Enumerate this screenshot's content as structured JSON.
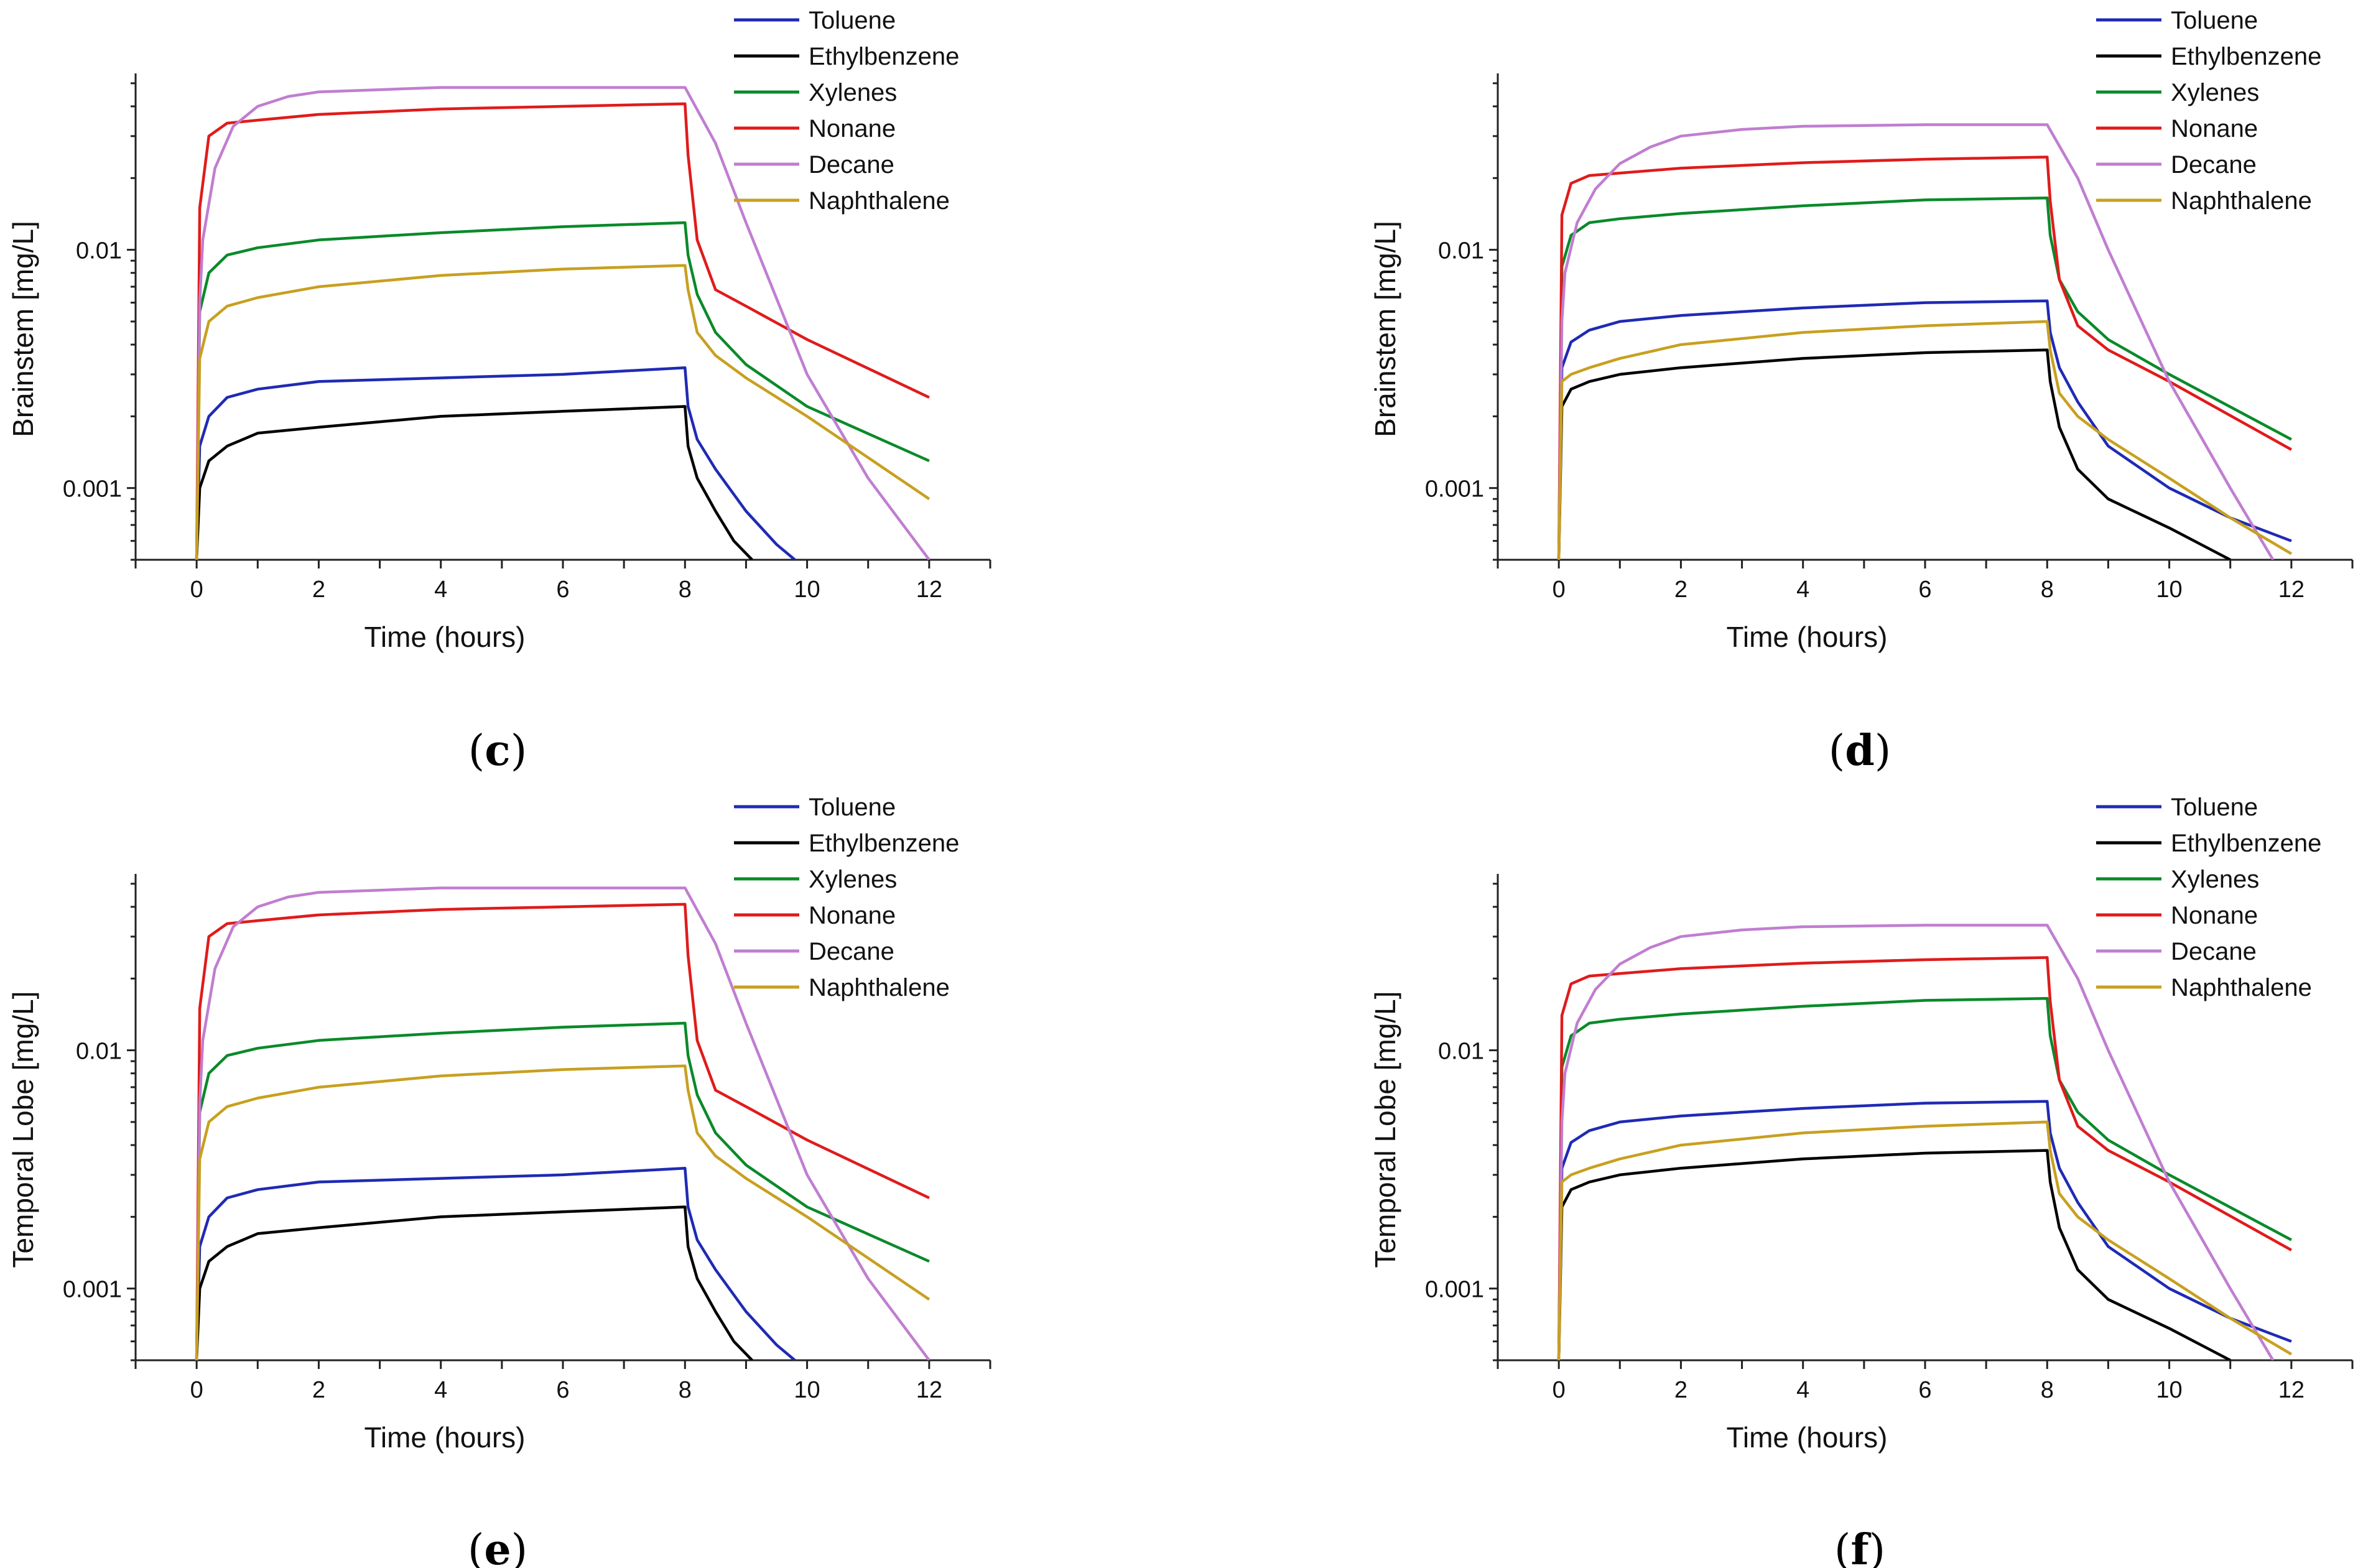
{
  "chart_data": [
    {
      "type": "line",
      "panel": "c",
      "panel_label": "(c)",
      "xlabel": "Time (hours)",
      "ylabel": "Brainstem [mg/L]",
      "xlim": [
        -1,
        13
      ],
      "ylim": [
        0.0005,
        0.055
      ],
      "yscale": "log",
      "x_ticks": [
        0,
        2,
        4,
        6,
        8,
        10,
        12
      ],
      "y_ticks": [
        {
          "value": 0.001,
          "label": "0.001"
        },
        {
          "value": 0.01,
          "label": "0.01"
        }
      ],
      "legend_position": "top-right",
      "series": [
        {
          "name": "Toluene",
          "color": "#1f2ab4",
          "x": [
            0,
            0.05,
            0.2,
            0.5,
            1,
            2,
            4,
            6,
            8,
            8.05,
            8.2,
            8.5,
            9,
            9.5,
            9.8
          ],
          "y": [
            0.0005,
            0.0015,
            0.002,
            0.0024,
            0.0026,
            0.0028,
            0.0029,
            0.003,
            0.0032,
            0.0022,
            0.0016,
            0.0012,
            0.0008,
            0.00058,
            0.0005
          ]
        },
        {
          "name": "Ethylbenzene",
          "color": "#000000",
          "x": [
            0,
            0.05,
            0.2,
            0.5,
            1,
            2,
            4,
            6,
            8,
            8.05,
            8.2,
            8.5,
            8.8,
            9.1
          ],
          "y": [
            0.0005,
            0.001,
            0.0013,
            0.0015,
            0.0017,
            0.0018,
            0.002,
            0.0021,
            0.0022,
            0.0015,
            0.0011,
            0.0008,
            0.0006,
            0.0005
          ]
        },
        {
          "name": "Xylenes",
          "color": "#0a8a2a",
          "x": [
            0,
            0.05,
            0.2,
            0.5,
            1,
            2,
            4,
            6,
            8,
            8.05,
            8.2,
            8.5,
            9,
            10,
            12
          ],
          "y": [
            0.0005,
            0.0055,
            0.008,
            0.0095,
            0.0102,
            0.011,
            0.0118,
            0.0125,
            0.013,
            0.0095,
            0.0065,
            0.0045,
            0.0033,
            0.0022,
            0.0013
          ]
        },
        {
          "name": "Nonane",
          "color": "#e01b1b",
          "x": [
            0,
            0.05,
            0.2,
            0.5,
            1,
            2,
            4,
            6,
            8,
            8.05,
            8.2,
            8.5,
            9,
            10,
            12
          ],
          "y": [
            0.0005,
            0.015,
            0.03,
            0.034,
            0.035,
            0.037,
            0.039,
            0.04,
            0.041,
            0.025,
            0.011,
            0.0068,
            0.0058,
            0.0042,
            0.0024
          ]
        },
        {
          "name": "Decane",
          "color": "#c07ed0",
          "x": [
            0,
            0.05,
            0.1,
            0.3,
            0.6,
            1,
            1.5,
            2,
            3,
            4,
            6,
            8,
            8.5,
            9,
            10,
            11,
            12
          ],
          "y": [
            0.0005,
            0.006,
            0.011,
            0.022,
            0.033,
            0.04,
            0.044,
            0.046,
            0.047,
            0.048,
            0.048,
            0.048,
            0.028,
            0.013,
            0.003,
            0.0011,
            0.0005
          ]
        },
        {
          "name": "Naphthalene",
          "color": "#c8a020",
          "x": [
            0,
            0.05,
            0.2,
            0.5,
            1,
            2,
            4,
            6,
            8,
            8.05,
            8.2,
            8.5,
            9,
            10,
            12
          ],
          "y": [
            0.0005,
            0.0035,
            0.005,
            0.0058,
            0.0063,
            0.007,
            0.0078,
            0.0083,
            0.0086,
            0.0068,
            0.0045,
            0.0036,
            0.0029,
            0.002,
            0.0009
          ]
        }
      ]
    },
    {
      "type": "line",
      "panel": "d",
      "panel_label": "(d)",
      "xlabel": "Time (hours)",
      "ylabel": "Brainstem [mg/L]",
      "xlim": [
        -1,
        13
      ],
      "ylim": [
        0.0005,
        0.055
      ],
      "yscale": "log",
      "x_ticks": [
        0,
        2,
        4,
        6,
        8,
        10,
        12
      ],
      "y_ticks": [
        {
          "value": 0.001,
          "label": "0.001"
        },
        {
          "value": 0.01,
          "label": "0.01"
        }
      ],
      "legend_position": "top-right",
      "series": [
        {
          "name": "Toluene",
          "color": "#1f2ab4",
          "x": [
            0,
            0.05,
            0.2,
            0.5,
            1,
            2,
            4,
            6,
            8,
            8.05,
            8.2,
            8.5,
            9,
            10,
            11,
            12
          ],
          "y": [
            0.0005,
            0.0032,
            0.0041,
            0.0046,
            0.005,
            0.0053,
            0.0057,
            0.006,
            0.0061,
            0.0045,
            0.0032,
            0.0023,
            0.0015,
            0.001,
            0.00075,
            0.0006
          ]
        },
        {
          "name": "Ethylbenzene",
          "color": "#000000",
          "x": [
            0,
            0.05,
            0.2,
            0.5,
            1,
            2,
            4,
            6,
            8,
            8.05,
            8.2,
            8.5,
            9,
            10,
            11
          ],
          "y": [
            0.0005,
            0.0022,
            0.0026,
            0.0028,
            0.003,
            0.0032,
            0.0035,
            0.0037,
            0.0038,
            0.0028,
            0.0018,
            0.0012,
            0.0009,
            0.00068,
            0.0005
          ]
        },
        {
          "name": "Xylenes",
          "color": "#0a8a2a",
          "x": [
            0,
            0.05,
            0.2,
            0.5,
            1,
            2,
            4,
            6,
            8,
            8.05,
            8.2,
            8.5,
            9,
            10,
            12
          ],
          "y": [
            0.0005,
            0.0085,
            0.0115,
            0.013,
            0.0135,
            0.0142,
            0.0153,
            0.0162,
            0.0165,
            0.0115,
            0.0075,
            0.0055,
            0.0042,
            0.003,
            0.0016
          ]
        },
        {
          "name": "Nonane",
          "color": "#e01b1b",
          "x": [
            0,
            0.05,
            0.2,
            0.5,
            1,
            2,
            4,
            6,
            8,
            8.05,
            8.2,
            8.5,
            9,
            10,
            12
          ],
          "y": [
            0.0005,
            0.014,
            0.019,
            0.0205,
            0.021,
            0.022,
            0.0232,
            0.024,
            0.0245,
            0.016,
            0.0075,
            0.0048,
            0.0038,
            0.0028,
            0.00145
          ]
        },
        {
          "name": "Decane",
          "color": "#c07ed0",
          "x": [
            0,
            0.05,
            0.1,
            0.3,
            0.6,
            1,
            1.5,
            2,
            3,
            4,
            6,
            8,
            8.5,
            9,
            10,
            11,
            11.7
          ],
          "y": [
            0.0005,
            0.005,
            0.008,
            0.013,
            0.018,
            0.023,
            0.027,
            0.03,
            0.032,
            0.033,
            0.0335,
            0.0335,
            0.02,
            0.01,
            0.0028,
            0.001,
            0.0005
          ]
        },
        {
          "name": "Naphthalene",
          "color": "#c8a020",
          "x": [
            0,
            0.05,
            0.2,
            0.5,
            1,
            2,
            4,
            6,
            8,
            8.05,
            8.2,
            8.5,
            9,
            10,
            11,
            12
          ],
          "y": [
            0.0005,
            0.0028,
            0.003,
            0.0032,
            0.0035,
            0.004,
            0.0045,
            0.0048,
            0.005,
            0.0038,
            0.0025,
            0.002,
            0.0016,
            0.0011,
            0.00075,
            0.00053
          ]
        }
      ]
    },
    {
      "type": "line",
      "panel": "e",
      "panel_label": "(e)",
      "xlabel": "Time (hours)",
      "ylabel": "Temporal Lobe [mg/L]",
      "xlim": [
        -1,
        13
      ],
      "ylim": [
        0.0005,
        0.055
      ],
      "yscale": "log",
      "x_ticks": [
        0,
        2,
        4,
        6,
        8,
        10,
        12
      ],
      "y_ticks": [
        {
          "value": 0.001,
          "label": "0.001"
        },
        {
          "value": 0.01,
          "label": "0.01"
        }
      ],
      "legend_position": "top-right",
      "series": [
        {
          "name": "Toluene",
          "color": "#1f2ab4",
          "x": [
            0,
            0.05,
            0.2,
            0.5,
            1,
            2,
            4,
            6,
            8,
            8.05,
            8.2,
            8.5,
            9,
            9.5,
            9.8
          ],
          "y": [
            0.0005,
            0.0015,
            0.002,
            0.0024,
            0.0026,
            0.0028,
            0.0029,
            0.003,
            0.0032,
            0.0022,
            0.0016,
            0.0012,
            0.0008,
            0.00058,
            0.0005
          ]
        },
        {
          "name": "Ethylbenzene",
          "color": "#000000",
          "x": [
            0,
            0.05,
            0.2,
            0.5,
            1,
            2,
            4,
            6,
            8,
            8.05,
            8.2,
            8.5,
            8.8,
            9.1
          ],
          "y": [
            0.0005,
            0.001,
            0.0013,
            0.0015,
            0.0017,
            0.0018,
            0.002,
            0.0021,
            0.0022,
            0.0015,
            0.0011,
            0.0008,
            0.0006,
            0.0005
          ]
        },
        {
          "name": "Xylenes",
          "color": "#0a8a2a",
          "x": [
            0,
            0.05,
            0.2,
            0.5,
            1,
            2,
            4,
            6,
            8,
            8.05,
            8.2,
            8.5,
            9,
            10,
            12
          ],
          "y": [
            0.0005,
            0.0055,
            0.008,
            0.0095,
            0.0102,
            0.011,
            0.0118,
            0.0125,
            0.013,
            0.0095,
            0.0065,
            0.0045,
            0.0033,
            0.0022,
            0.0013
          ]
        },
        {
          "name": "Nonane",
          "color": "#e01b1b",
          "x": [
            0,
            0.05,
            0.2,
            0.5,
            1,
            2,
            4,
            6,
            8,
            8.05,
            8.2,
            8.5,
            9,
            10,
            12
          ],
          "y": [
            0.0005,
            0.015,
            0.03,
            0.034,
            0.035,
            0.037,
            0.039,
            0.04,
            0.041,
            0.025,
            0.011,
            0.0068,
            0.0058,
            0.0042,
            0.0024
          ]
        },
        {
          "name": "Decane",
          "color": "#c07ed0",
          "x": [
            0,
            0.05,
            0.1,
            0.3,
            0.6,
            1,
            1.5,
            2,
            3,
            4,
            6,
            8,
            8.5,
            9,
            10,
            11,
            12
          ],
          "y": [
            0.0005,
            0.006,
            0.011,
            0.022,
            0.033,
            0.04,
            0.044,
            0.046,
            0.047,
            0.048,
            0.048,
            0.048,
            0.028,
            0.013,
            0.003,
            0.0011,
            0.0005
          ]
        },
        {
          "name": "Naphthalene",
          "color": "#c8a020",
          "x": [
            0,
            0.05,
            0.2,
            0.5,
            1,
            2,
            4,
            6,
            8,
            8.05,
            8.2,
            8.5,
            9,
            10,
            12
          ],
          "y": [
            0.0005,
            0.0035,
            0.005,
            0.0058,
            0.0063,
            0.007,
            0.0078,
            0.0083,
            0.0086,
            0.0068,
            0.0045,
            0.0036,
            0.0029,
            0.002,
            0.0009
          ]
        }
      ]
    },
    {
      "type": "line",
      "panel": "f",
      "panel_label": "(f)",
      "xlabel": "Time (hours)",
      "ylabel": "Temporal Lobe [mg/L]",
      "xlim": [
        -1,
        13
      ],
      "ylim": [
        0.0005,
        0.055
      ],
      "yscale": "log",
      "x_ticks": [
        0,
        2,
        4,
        6,
        8,
        10,
        12
      ],
      "y_ticks": [
        {
          "value": 0.001,
          "label": "0.001"
        },
        {
          "value": 0.01,
          "label": "0.01"
        }
      ],
      "legend_position": "top-right",
      "series": [
        {
          "name": "Toluene",
          "color": "#1f2ab4",
          "x": [
            0,
            0.05,
            0.2,
            0.5,
            1,
            2,
            4,
            6,
            8,
            8.05,
            8.2,
            8.5,
            9,
            10,
            11,
            12
          ],
          "y": [
            0.0005,
            0.0032,
            0.0041,
            0.0046,
            0.005,
            0.0053,
            0.0057,
            0.006,
            0.0061,
            0.0045,
            0.0032,
            0.0023,
            0.0015,
            0.001,
            0.00075,
            0.0006
          ]
        },
        {
          "name": "Ethylbenzene",
          "color": "#000000",
          "x": [
            0,
            0.05,
            0.2,
            0.5,
            1,
            2,
            4,
            6,
            8,
            8.05,
            8.2,
            8.5,
            9,
            10,
            11
          ],
          "y": [
            0.0005,
            0.0022,
            0.0026,
            0.0028,
            0.003,
            0.0032,
            0.0035,
            0.0037,
            0.0038,
            0.0028,
            0.0018,
            0.0012,
            0.0009,
            0.00068,
            0.0005
          ]
        },
        {
          "name": "Xylenes",
          "color": "#0a8a2a",
          "x": [
            0,
            0.05,
            0.2,
            0.5,
            1,
            2,
            4,
            6,
            8,
            8.05,
            8.2,
            8.5,
            9,
            10,
            12
          ],
          "y": [
            0.0005,
            0.0085,
            0.0115,
            0.013,
            0.0135,
            0.0142,
            0.0153,
            0.0162,
            0.0165,
            0.0115,
            0.0075,
            0.0055,
            0.0042,
            0.003,
            0.0016
          ]
        },
        {
          "name": "Nonane",
          "color": "#e01b1b",
          "x": [
            0,
            0.05,
            0.2,
            0.5,
            1,
            2,
            4,
            6,
            8,
            8.05,
            8.2,
            8.5,
            9,
            10,
            12
          ],
          "y": [
            0.0005,
            0.014,
            0.019,
            0.0205,
            0.021,
            0.022,
            0.0232,
            0.024,
            0.0245,
            0.016,
            0.0075,
            0.0048,
            0.0038,
            0.0028,
            0.00145
          ]
        },
        {
          "name": "Decane",
          "color": "#c07ed0",
          "x": [
            0,
            0.05,
            0.1,
            0.3,
            0.6,
            1,
            1.5,
            2,
            3,
            4,
            6,
            8,
            8.5,
            9,
            10,
            11,
            11.7
          ],
          "y": [
            0.0005,
            0.005,
            0.008,
            0.013,
            0.018,
            0.023,
            0.027,
            0.03,
            0.032,
            0.033,
            0.0335,
            0.0335,
            0.02,
            0.01,
            0.0028,
            0.001,
            0.0005
          ]
        },
        {
          "name": "Naphthalene",
          "color": "#c8a020",
          "x": [
            0,
            0.05,
            0.2,
            0.5,
            1,
            2,
            4,
            6,
            8,
            8.05,
            8.2,
            8.5,
            9,
            10,
            11,
            12
          ],
          "y": [
            0.0005,
            0.0028,
            0.003,
            0.0032,
            0.0035,
            0.004,
            0.0045,
            0.0048,
            0.005,
            0.0038,
            0.0025,
            0.002,
            0.0016,
            0.0011,
            0.00075,
            0.00053
          ]
        }
      ]
    }
  ]
}
